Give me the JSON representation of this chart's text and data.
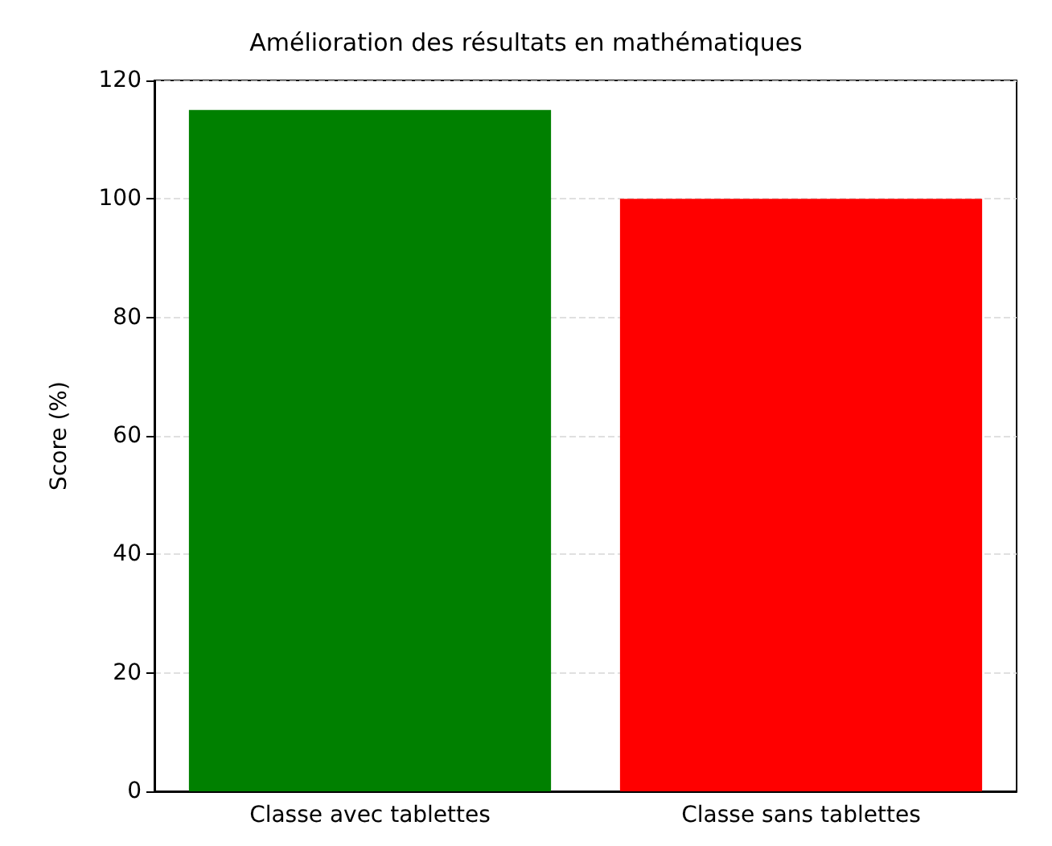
{
  "chart_data": {
    "type": "bar",
    "title": "Amélioration des résultats en mathématiques",
    "ylabel": "Score (%)",
    "categories": [
      "Classe avec tablettes",
      "Classe sans tablettes"
    ],
    "values": [
      115,
      100
    ],
    "colors": [
      "#008000",
      "#ff0000"
    ],
    "ylim": [
      0,
      120
    ],
    "yticks": [
      0,
      20,
      40,
      60,
      80,
      100,
      120
    ],
    "grid": "y"
  }
}
